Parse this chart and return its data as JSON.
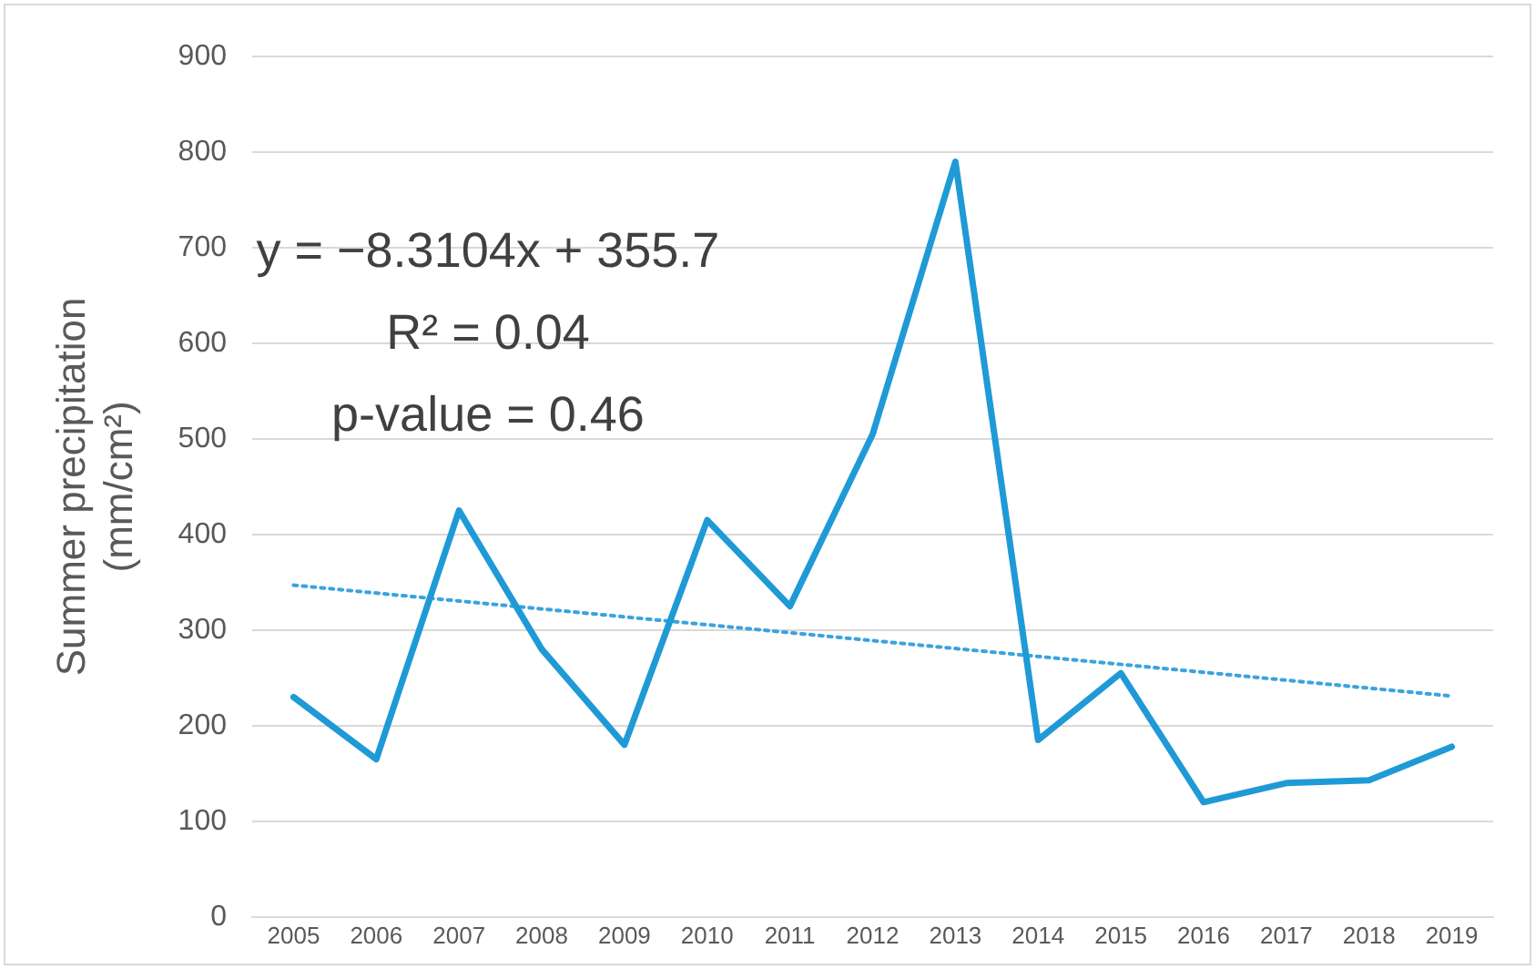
{
  "chart_data": {
    "type": "line",
    "ylabel": "Summer precipitation (mm/cm²)",
    "categories": [
      "2005",
      "2006",
      "2007",
      "2008",
      "2009",
      "2010",
      "2011",
      "2012",
      "2013",
      "2014",
      "2015",
      "2016",
      "2017",
      "2018",
      "2019"
    ],
    "series": [
      {
        "color": "#1f9ad6",
        "values": [
          230,
          165,
          425,
          280,
          180,
          415,
          325,
          505,
          790,
          185,
          255,
          120,
          140,
          143,
          178
        ]
      },
      {
        "line_style": "dotted",
        "color": "#3aa3dd",
        "values": [
          347,
          null,
          null,
          null,
          null,
          null,
          null,
          null,
          null,
          null,
          null,
          null,
          null,
          null,
          231
        ]
      }
    ],
    "ylim": [
      0,
      900
    ],
    "yticks": [
      0,
      100,
      200,
      300,
      400,
      500,
      600,
      700,
      800,
      900
    ],
    "grid": "y",
    "legend": false,
    "marker": "none",
    "line_style": "solid",
    "annotations": [
      "y = −8.3104x + 355.7",
      "R² = 0.04",
      "p-value = 0.46"
    ]
  }
}
